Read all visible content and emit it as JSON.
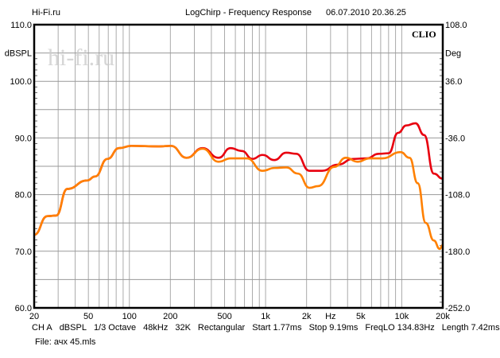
{
  "header": {
    "left": "Hi-Fi.ru",
    "title": "LogChirp - Frequency Response",
    "datetime": "06.07.2010 20.36.25"
  },
  "brand": "CLIO",
  "watermark": "hi-fi.ru",
  "footer": {
    "settings": [
      "CH A",
      "dBSPL",
      "1/3 Octave",
      "48kHz",
      "32K",
      "Rectangular",
      "Start 1.77ms",
      "Stop 9.19ms",
      "FreqLO 134.83Hz",
      "Length 7.42ms"
    ],
    "file": "File: ачх 45.mls"
  },
  "colors": {
    "red": "#e8000f",
    "orange": "#ff8000",
    "grid": "#999999"
  },
  "chart_data": {
    "type": "line",
    "title": "LogChirp - Frequency Response",
    "xlabel": "Hz",
    "ylabel": "dBSPL",
    "y2label": "Deg",
    "xscale": "log",
    "xlim": [
      20,
      20000
    ],
    "ylim": [
      60,
      110
    ],
    "y2lim": [
      -252,
      108
    ],
    "grid": true,
    "x_ticks": [
      {
        "v": 20,
        "l": "20"
      },
      {
        "v": 50,
        "l": "50"
      },
      {
        "v": 100,
        "l": "100"
      },
      {
        "v": 200,
        "l": "200"
      },
      {
        "v": 500,
        "l": "500"
      },
      {
        "v": 1000,
        "l": "1k"
      },
      {
        "v": 2000,
        "l": "2k"
      },
      {
        "v": 3000,
        "l": "Hz"
      },
      {
        "v": 5000,
        "l": "5k"
      },
      {
        "v": 10000,
        "l": "10k"
      },
      {
        "v": 20000,
        "l": "20k"
      }
    ],
    "y_ticks": [
      {
        "v": 110,
        "l": "110.0"
      },
      {
        "v": 105,
        "l": "dBSPL"
      },
      {
        "v": 100,
        "l": "100.0"
      },
      {
        "v": 90,
        "l": "90.0"
      },
      {
        "v": 80,
        "l": "80.0"
      },
      {
        "v": 70,
        "l": "70.0"
      },
      {
        "v": 60,
        "l": "60.0"
      }
    ],
    "y2_ticks": [
      {
        "v": 110,
        "l": "108.0"
      },
      {
        "v": 105,
        "l": "Deg"
      },
      {
        "v": 100,
        "l": "36.0"
      },
      {
        "v": 90,
        "l": "-36.0"
      },
      {
        "v": 80,
        "l": "-108.0"
      },
      {
        "v": 70,
        "l": "-180.0"
      },
      {
        "v": 60,
        "l": "-252.0"
      }
    ],
    "series": [
      {
        "name": "red",
        "color": "#e8000f",
        "x": [
          20,
          25,
          29,
          35,
          49,
          56,
          69,
          84,
          103,
          165,
          202,
          263,
          345,
          452,
          553,
          670,
          800,
          950,
          1160,
          1420,
          1680,
          2100,
          2600,
          3400,
          4400,
          5500,
          6800,
          8000,
          9400,
          10800,
          12600,
          14600,
          17200,
          20000
        ],
        "y": [
          72.9,
          76.2,
          76.3,
          81,
          82.5,
          83.2,
          86.3,
          88.2,
          88.6,
          88.5,
          88.6,
          86.5,
          88.2,
          86.5,
          88.2,
          87.7,
          86.3,
          87,
          86.1,
          87.4,
          87.2,
          84.2,
          84.2,
          85.3,
          86.3,
          86.4,
          87.2,
          87.3,
          90.9,
          92.2,
          92.6,
          90.5,
          83.7,
          82.8
        ]
      },
      {
        "name": "orange",
        "color": "#ff8000",
        "x": [
          20,
          25,
          29,
          35,
          49,
          56,
          69,
          84,
          103,
          165,
          202,
          263,
          345,
          452,
          553,
          728,
          950,
          1160,
          1420,
          1730,
          2100,
          2430,
          3200,
          3880,
          4750,
          5800,
          7200,
          9800,
          11400,
          13100,
          15000,
          17200,
          19000,
          20000
        ],
        "y": [
          72.9,
          76.2,
          76.3,
          81,
          82.5,
          83.2,
          86.3,
          88.2,
          88.6,
          88.5,
          88.6,
          86.5,
          88.1,
          85.8,
          86.4,
          86.4,
          84.2,
          84.7,
          84.8,
          83.7,
          81.2,
          81.5,
          84.9,
          86.5,
          85.8,
          86.4,
          86.4,
          87.5,
          86.5,
          82,
          75,
          71.9,
          70.4,
          71.1
        ]
      }
    ]
  }
}
